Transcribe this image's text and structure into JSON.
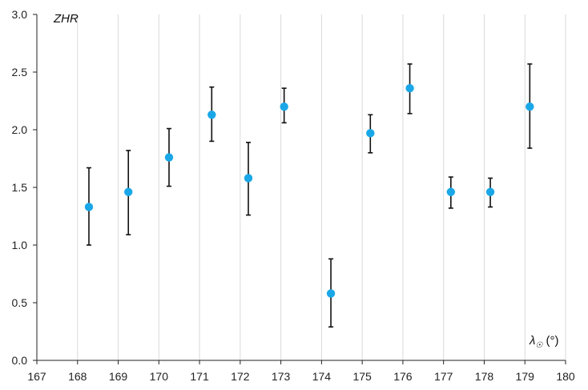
{
  "chart_data": {
    "type": "scatter",
    "title": "",
    "ylabel": "ZHR",
    "xlabel_symbol": "λ",
    "xlabel_subscript": "☉",
    "xlabel_unit": " (°)",
    "xlim": [
      167,
      180
    ],
    "ylim": [
      0.0,
      3.0
    ],
    "x_ticks": [
      167,
      168,
      169,
      170,
      171,
      172,
      173,
      174,
      175,
      176,
      177,
      178,
      179,
      180
    ],
    "y_ticks": [
      "0.0",
      "0.5",
      "1.0",
      "1.5",
      "2.0",
      "2.5",
      "3.0"
    ],
    "grid": "vertical",
    "marker_color": "#1aa7e8",
    "errorbar_color": "#111111",
    "points": [
      {
        "x": 168.28,
        "y": 1.33,
        "err_low": 1.0,
        "err_high": 1.67
      },
      {
        "x": 169.25,
        "y": 1.46,
        "err_low": 1.09,
        "err_high": 1.82
      },
      {
        "x": 170.25,
        "y": 1.76,
        "err_low": 1.51,
        "err_high": 2.01
      },
      {
        "x": 171.3,
        "y": 2.13,
        "err_low": 1.9,
        "err_high": 2.37
      },
      {
        "x": 172.2,
        "y": 1.58,
        "err_low": 1.26,
        "err_high": 1.89
      },
      {
        "x": 173.08,
        "y": 2.2,
        "err_low": 2.06,
        "err_high": 2.36
      },
      {
        "x": 174.23,
        "y": 0.58,
        "err_low": 0.29,
        "err_high": 0.88
      },
      {
        "x": 175.2,
        "y": 1.97,
        "err_low": 1.8,
        "err_high": 2.13
      },
      {
        "x": 176.17,
        "y": 2.36,
        "err_low": 2.14,
        "err_high": 2.57
      },
      {
        "x": 177.18,
        "y": 1.46,
        "err_low": 1.32,
        "err_high": 1.59
      },
      {
        "x": 178.15,
        "y": 1.46,
        "err_low": 1.33,
        "err_high": 1.58
      },
      {
        "x": 179.12,
        "y": 2.2,
        "err_low": 1.84,
        "err_high": 2.57
      }
    ]
  }
}
